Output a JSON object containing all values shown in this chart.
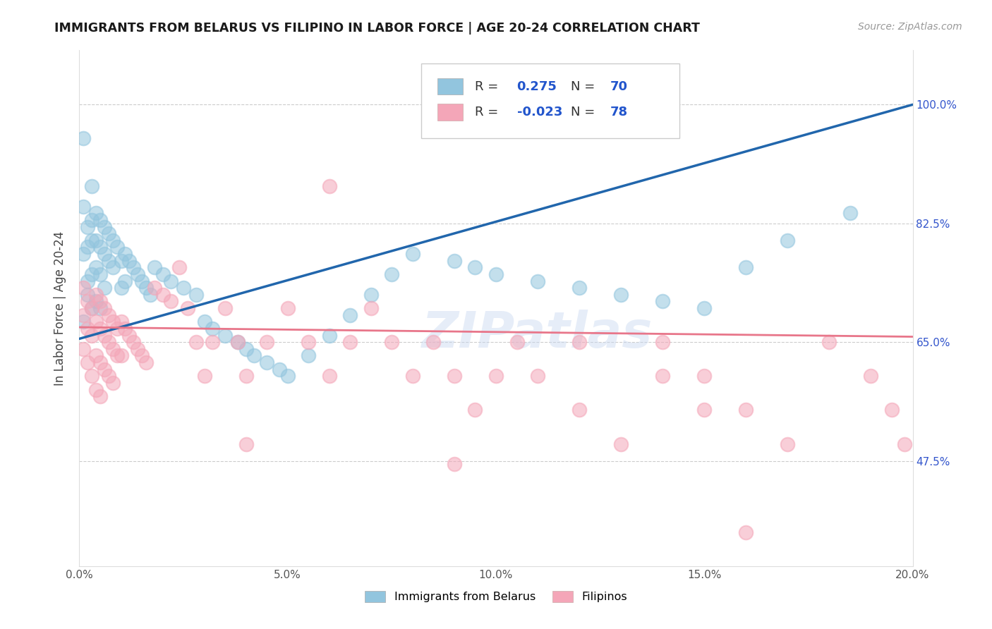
{
  "title": "IMMIGRANTS FROM BELARUS VS FILIPINO IN LABOR FORCE | AGE 20-24 CORRELATION CHART",
  "source": "Source: ZipAtlas.com",
  "ylabel": "In Labor Force | Age 20-24",
  "legend_label1": "Immigrants from Belarus",
  "legend_label2": "Filipinos",
  "R1": 0.275,
  "N1": 70,
  "R2": -0.023,
  "N2": 78,
  "xlim": [
    0.0,
    0.2
  ],
  "ylim": [
    0.32,
    1.08
  ],
  "yticks": [
    0.475,
    0.65,
    0.825,
    1.0
  ],
  "ytick_labels": [
    "47.5%",
    "65.0%",
    "82.5%",
    "100.0%"
  ],
  "xticks": [
    0.0,
    0.05,
    0.1,
    0.15,
    0.2
  ],
  "xtick_labels": [
    "0.0%",
    "5.0%",
    "10.0%",
    "15.0%",
    "20.0%"
  ],
  "blue_color": "#92c5de",
  "pink_color": "#f4a6b8",
  "blue_line_color": "#2166ac",
  "pink_line_color": "#e8768a",
  "watermark": "ZIPatlas",
  "blue_trend_x0": 0.0,
  "blue_trend_y0": 0.655,
  "blue_trend_x1": 0.2,
  "blue_trend_y1": 1.0,
  "pink_trend_x0": 0.0,
  "pink_trend_y0": 0.672,
  "pink_trend_x1": 0.2,
  "pink_trend_y1": 0.658,
  "blue_x": [
    0.001,
    0.001,
    0.001,
    0.001,
    0.002,
    0.002,
    0.002,
    0.002,
    0.003,
    0.003,
    0.003,
    0.003,
    0.003,
    0.004,
    0.004,
    0.004,
    0.004,
    0.005,
    0.005,
    0.005,
    0.005,
    0.006,
    0.006,
    0.006,
    0.007,
    0.007,
    0.008,
    0.008,
    0.009,
    0.01,
    0.01,
    0.011,
    0.011,
    0.012,
    0.013,
    0.014,
    0.015,
    0.016,
    0.017,
    0.018,
    0.02,
    0.022,
    0.025,
    0.028,
    0.03,
    0.032,
    0.035,
    0.038,
    0.04,
    0.042,
    0.045,
    0.048,
    0.05,
    0.055,
    0.06,
    0.065,
    0.07,
    0.075,
    0.08,
    0.09,
    0.095,
    0.1,
    0.11,
    0.12,
    0.13,
    0.14,
    0.15,
    0.16,
    0.17,
    0.185
  ],
  "blue_y": [
    0.95,
    0.85,
    0.78,
    0.68,
    0.82,
    0.79,
    0.74,
    0.72,
    0.88,
    0.83,
    0.8,
    0.75,
    0.7,
    0.84,
    0.8,
    0.76,
    0.71,
    0.83,
    0.79,
    0.75,
    0.7,
    0.82,
    0.78,
    0.73,
    0.81,
    0.77,
    0.8,
    0.76,
    0.79,
    0.77,
    0.73,
    0.78,
    0.74,
    0.77,
    0.76,
    0.75,
    0.74,
    0.73,
    0.72,
    0.76,
    0.75,
    0.74,
    0.73,
    0.72,
    0.68,
    0.67,
    0.66,
    0.65,
    0.64,
    0.63,
    0.62,
    0.61,
    0.6,
    0.63,
    0.66,
    0.69,
    0.72,
    0.75,
    0.78,
    0.77,
    0.76,
    0.75,
    0.74,
    0.73,
    0.72,
    0.71,
    0.7,
    0.76,
    0.8,
    0.84
  ],
  "pink_x": [
    0.001,
    0.001,
    0.001,
    0.002,
    0.002,
    0.002,
    0.003,
    0.003,
    0.003,
    0.004,
    0.004,
    0.004,
    0.004,
    0.005,
    0.005,
    0.005,
    0.005,
    0.006,
    0.006,
    0.006,
    0.007,
    0.007,
    0.007,
    0.008,
    0.008,
    0.008,
    0.009,
    0.009,
    0.01,
    0.01,
    0.011,
    0.012,
    0.013,
    0.014,
    0.015,
    0.016,
    0.018,
    0.02,
    0.022,
    0.024,
    0.026,
    0.028,
    0.03,
    0.032,
    0.035,
    0.038,
    0.04,
    0.045,
    0.05,
    0.055,
    0.06,
    0.065,
    0.07,
    0.075,
    0.08,
    0.085,
    0.09,
    0.095,
    0.1,
    0.105,
    0.11,
    0.12,
    0.13,
    0.14,
    0.15,
    0.16,
    0.17,
    0.18,
    0.19,
    0.195,
    0.198,
    0.06,
    0.12,
    0.14,
    0.15,
    0.09,
    0.04,
    0.16
  ],
  "pink_y": [
    0.73,
    0.69,
    0.64,
    0.71,
    0.67,
    0.62,
    0.7,
    0.66,
    0.6,
    0.72,
    0.68,
    0.63,
    0.58,
    0.71,
    0.67,
    0.62,
    0.57,
    0.7,
    0.66,
    0.61,
    0.69,
    0.65,
    0.6,
    0.68,
    0.64,
    0.59,
    0.67,
    0.63,
    0.68,
    0.63,
    0.67,
    0.66,
    0.65,
    0.64,
    0.63,
    0.62,
    0.73,
    0.72,
    0.71,
    0.76,
    0.7,
    0.65,
    0.6,
    0.65,
    0.7,
    0.65,
    0.6,
    0.65,
    0.7,
    0.65,
    0.6,
    0.65,
    0.7,
    0.65,
    0.6,
    0.65,
    0.6,
    0.55,
    0.6,
    0.65,
    0.6,
    0.55,
    0.5,
    0.65,
    0.6,
    0.55,
    0.5,
    0.65,
    0.6,
    0.55,
    0.5,
    0.88,
    0.65,
    0.6,
    0.55,
    0.47,
    0.5,
    0.37
  ]
}
